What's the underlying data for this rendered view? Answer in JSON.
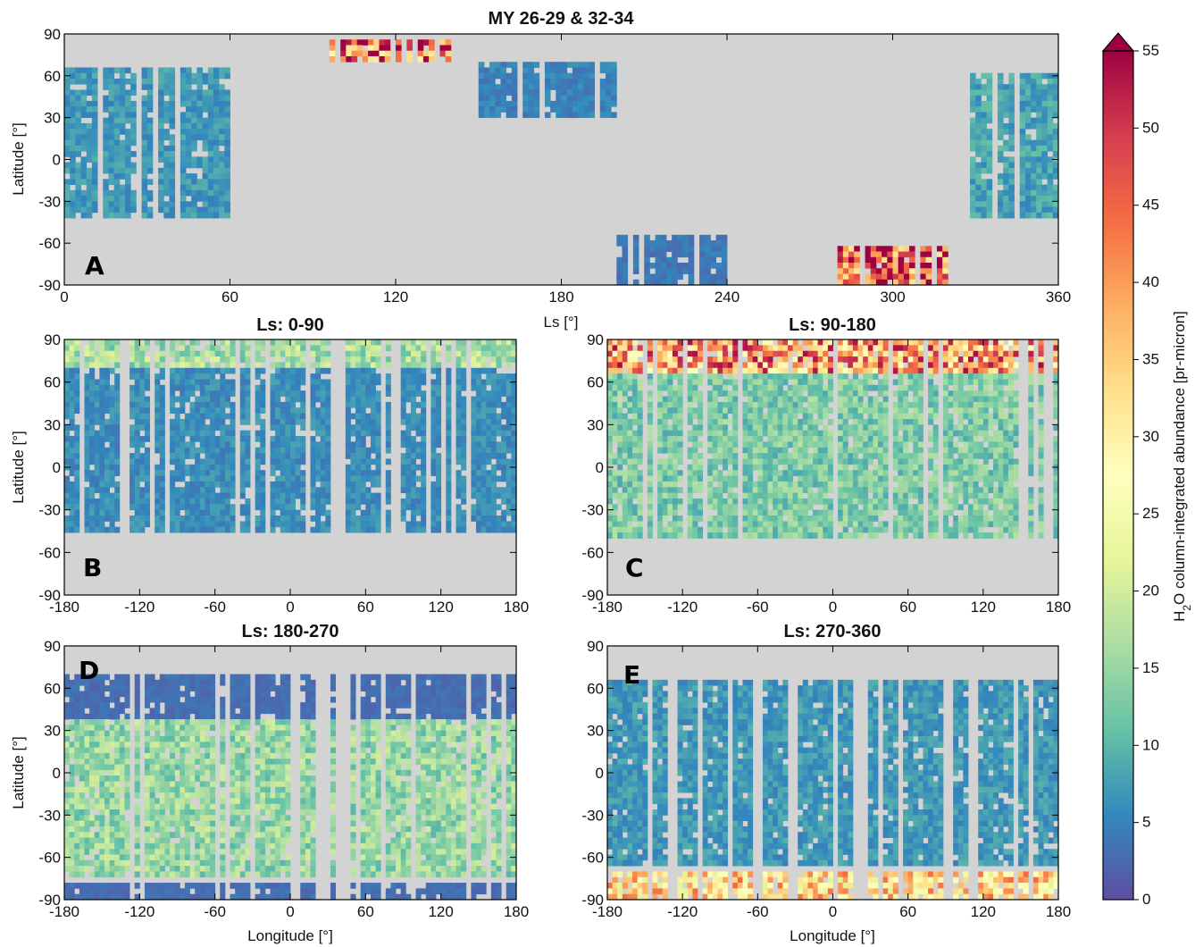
{
  "chart_data": [
    {
      "id": "A",
      "type": "heatmap",
      "panel_label": "A",
      "title": "MY 26-29 & 32-34",
      "xlabel": "Ls [°]",
      "ylabel": "Latitude [°]",
      "xlim": [
        0,
        360
      ],
      "ylim": [
        -90,
        90
      ],
      "xticks": [
        "0",
        "60",
        "120",
        "180",
        "240",
        "300",
        "360"
      ],
      "yticks": [
        "90",
        "60",
        "30",
        "0",
        "-30",
        "-60",
        "-90"
      ],
      "no_data_color": "#d3d3d3",
      "features": [
        {
          "x": [
            95,
            140
          ],
          "y": [
            70,
            87
          ],
          "value": 45
        },
        {
          "x": [
            280,
            320
          ],
          "y": [
            -88,
            -62
          ],
          "value": 45
        },
        {
          "x": [
            0,
            60
          ],
          "y": [
            -40,
            65
          ],
          "value": 7
        },
        {
          "x": [
            150,
            200
          ],
          "y": [
            30,
            70
          ],
          "value": 5
        },
        {
          "x": [
            200,
            240
          ],
          "y": [
            -88,
            -55
          ],
          "value": 4
        },
        {
          "x": [
            320,
            360
          ],
          "y": [
            -40,
            60
          ],
          "value": 8
        }
      ]
    },
    {
      "id": "B",
      "type": "heatmap",
      "panel_label": "B",
      "title": "Ls: 0-90",
      "xlabel": "",
      "ylabel": "Latitude [°]",
      "xlim": [
        -180,
        180
      ],
      "ylim": [
        -90,
        90
      ],
      "xticks": [
        "-180",
        "-120",
        "-60",
        "0",
        "60",
        "120",
        "180"
      ],
      "yticks": [
        "90",
        "60",
        "30",
        "0",
        "-30",
        "-60",
        "-90"
      ],
      "no_data_color": "#d3d3d3",
      "features": [
        {
          "x": [
            -180,
            180
          ],
          "y": [
            70,
            88
          ],
          "value": 16
        },
        {
          "x": [
            -180,
            180
          ],
          "y": [
            -45,
            70
          ],
          "value": 6
        }
      ]
    },
    {
      "id": "C",
      "type": "heatmap",
      "panel_label": "C",
      "title": "Ls: 90-180",
      "xlabel": "",
      "ylabel": "",
      "xlim": [
        -180,
        180
      ],
      "ylim": [
        -90,
        90
      ],
      "xticks": [
        "-180",
        "-120",
        "-60",
        "0",
        "60",
        "120",
        "180"
      ],
      "yticks": [
        "90",
        "60",
        "30",
        "0",
        "-30",
        "-60",
        "-90"
      ],
      "no_data_color": "#d3d3d3",
      "features": [
        {
          "x": [
            -180,
            180
          ],
          "y": [
            65,
            88
          ],
          "value": 40
        },
        {
          "x": [
            -180,
            180
          ],
          "y": [
            -50,
            65
          ],
          "value": 13
        }
      ]
    },
    {
      "id": "D",
      "type": "heatmap",
      "panel_label": "D",
      "title": "Ls: 180-270",
      "xlabel": "Longitude [°]",
      "ylabel": "Latitude [°]",
      "xlim": [
        -180,
        180
      ],
      "ylim": [
        -90,
        90
      ],
      "xticks": [
        "-180",
        "-120",
        "-60",
        "0",
        "60",
        "120",
        "180"
      ],
      "yticks": [
        "90",
        "60",
        "30",
        "0",
        "-30",
        "-60",
        "-90"
      ],
      "no_data_color": "#d3d3d3",
      "features": [
        {
          "x": [
            -180,
            180
          ],
          "y": [
            -88,
            -80
          ],
          "value": 3
        },
        {
          "x": [
            -180,
            180
          ],
          "y": [
            40,
            70
          ],
          "value": 3
        },
        {
          "x": [
            -180,
            180
          ],
          "y": [
            -75,
            40
          ],
          "value": 15
        }
      ]
    },
    {
      "id": "E",
      "type": "heatmap",
      "panel_label": "E",
      "title": "Ls: 270-360",
      "xlabel": "Longitude [°]",
      "ylabel": "",
      "xlim": [
        -180,
        180
      ],
      "ylim": [
        -90,
        90
      ],
      "xticks": [
        "-180",
        "-120",
        "-60",
        "0",
        "60",
        "120",
        "180"
      ],
      "yticks": [
        "90",
        "60",
        "30",
        "0",
        "-30",
        "-60",
        "-90"
      ],
      "no_data_color": "#d3d3d3",
      "features": [
        {
          "x": [
            -180,
            180
          ],
          "y": [
            -88,
            -70
          ],
          "value": 33
        },
        {
          "x": [
            -180,
            180
          ],
          "y": [
            -65,
            65
          ],
          "value": 7
        }
      ]
    }
  ],
  "colorbar": {
    "label_prefix": "H",
    "label_subscript": "2",
    "label_suffix": "O column-integrated abundance [pr-micron]",
    "min": 0,
    "max": 55,
    "extend": "max",
    "ticks": [
      "0",
      "5",
      "10",
      "15",
      "20",
      "25",
      "30",
      "35",
      "40",
      "45",
      "50",
      "55"
    ],
    "colormap": "Spectral_r",
    "colors": [
      "#5e4fa2",
      "#3288bd",
      "#66c2a5",
      "#abdda4",
      "#e6f598",
      "#ffffbf",
      "#fee08b",
      "#fdae61",
      "#f46d43",
      "#d53e4f",
      "#9e0142"
    ]
  }
}
